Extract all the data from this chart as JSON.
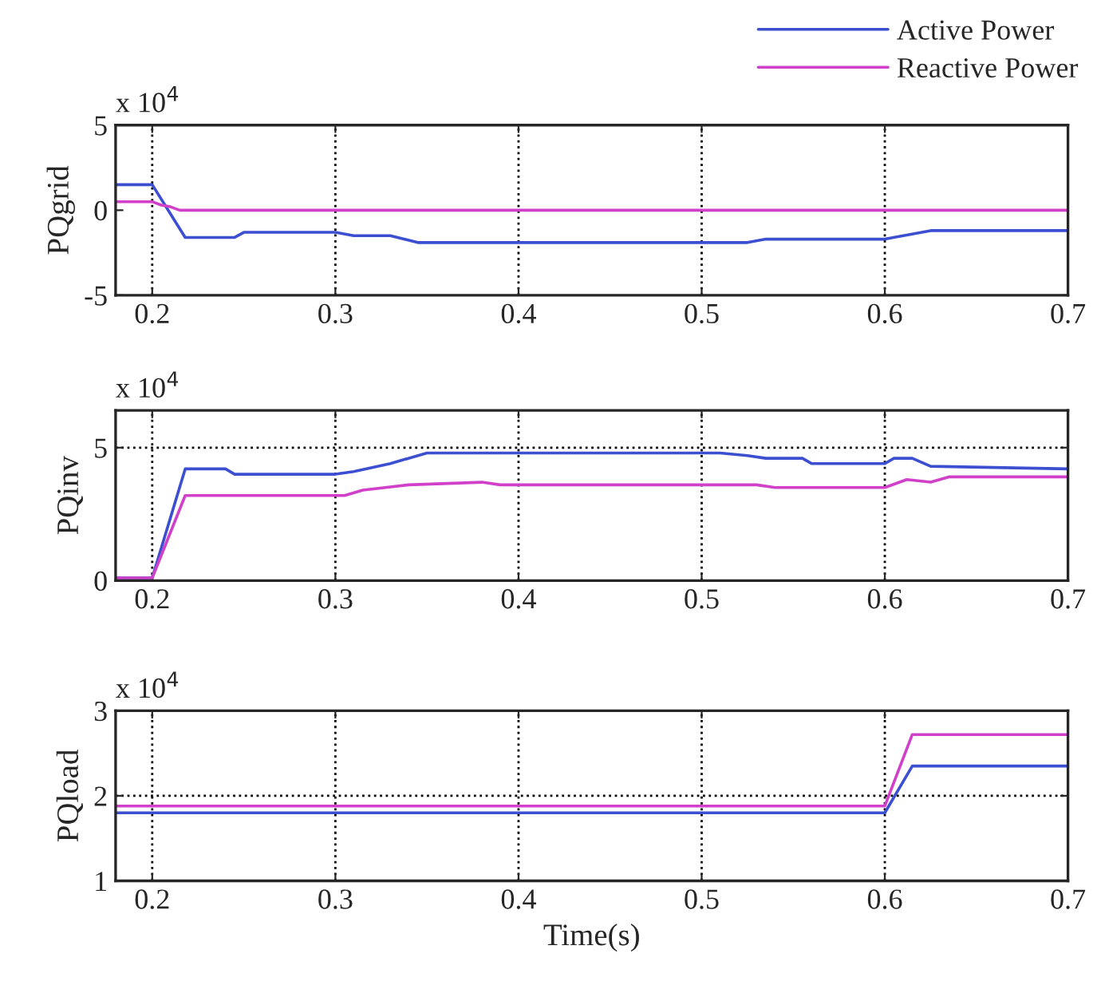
{
  "chart_data": [
    {
      "type": "line",
      "ylabel": "PQgrid",
      "annotations": [
        "x 10$^{4}$"
      ],
      "xlim": [
        0.18,
        0.7
      ],
      "xticks": [
        0.2,
        0.3,
        0.4,
        0.5,
        0.6,
        0.7
      ],
      "ylim": [
        -5,
        5
      ],
      "yticks": [
        -5,
        0,
        5
      ],
      "grid": "x",
      "legend": "top right",
      "series": [
        {
          "name": "Active Power",
          "color": "#3b4fd0",
          "x": [
            0.18,
            0.2,
            0.218,
            0.245,
            0.25,
            0.3,
            0.31,
            0.33,
            0.345,
            0.525,
            0.535,
            0.6,
            0.625,
            0.7
          ],
          "values": [
            1.5,
            1.5,
            -1.6,
            -1.6,
            -1.3,
            -1.3,
            -1.5,
            -1.5,
            -1.9,
            -1.9,
            -1.7,
            -1.7,
            -1.2,
            -1.2
          ]
        },
        {
          "name": "Reactive Power",
          "color": "#d040c8",
          "x": [
            0.18,
            0.2,
            0.205,
            0.21,
            0.215,
            0.7
          ],
          "values": [
            0.5,
            0.5,
            0.3,
            0.2,
            0,
            0
          ]
        }
      ]
    },
    {
      "type": "line",
      "ylabel": "PQinv",
      "annotations": [
        "x 10$^{4}$"
      ],
      "xlim": [
        0.18,
        0.7
      ],
      "xticks": [
        0.2,
        0.3,
        0.4,
        0.5,
        0.6,
        0.7
      ],
      "ylim": [
        0,
        6.4
      ],
      "yticks": [
        0,
        5
      ],
      "grid": true,
      "series": [
        {
          "color": "#3b4fd0",
          "x": [
            0.18,
            0.2,
            0.218,
            0.24,
            0.245,
            0.3,
            0.31,
            0.33,
            0.35,
            0.51,
            0.525,
            0.535,
            0.555,
            0.56,
            0.6,
            0.605,
            0.615,
            0.625,
            0.7
          ],
          "values": [
            0.1,
            0.1,
            4.2,
            4.2,
            4.0,
            4.0,
            4.1,
            4.4,
            4.8,
            4.8,
            4.7,
            4.6,
            4.6,
            4.4,
            4.4,
            4.6,
            4.6,
            4.3,
            4.2
          ]
        },
        {
          "color": "#d040c8",
          "x": [
            0.18,
            0.2,
            0.218,
            0.305,
            0.315,
            0.34,
            0.38,
            0.39,
            0.53,
            0.54,
            0.6,
            0.612,
            0.625,
            0.635,
            0.7
          ],
          "values": [
            0.1,
            0.1,
            3.2,
            3.2,
            3.4,
            3.6,
            3.7,
            3.6,
            3.6,
            3.5,
            3.5,
            3.8,
            3.7,
            3.9,
            3.9
          ]
        }
      ]
    },
    {
      "type": "line",
      "ylabel": "PQload",
      "xlabel": "Time(s)",
      "annotations": [
        "x 10$^{4}$"
      ],
      "xlim": [
        0.18,
        0.7
      ],
      "xticks": [
        0.2,
        0.3,
        0.4,
        0.5,
        0.6,
        0.7
      ],
      "ylim": [
        1,
        3
      ],
      "yticks": [
        1,
        2,
        3
      ],
      "grid": true,
      "series": [
        {
          "color": "#3b4fd0",
          "x": [
            0.18,
            0.6,
            0.615,
            0.7
          ],
          "values": [
            1.8,
            1.8,
            2.35,
            2.35
          ]
        },
        {
          "color": "#d040c8",
          "x": [
            0.18,
            0.6,
            0.615,
            0.7
          ],
          "values": [
            1.88,
            1.88,
            2.72,
            2.72
          ]
        }
      ]
    }
  ]
}
